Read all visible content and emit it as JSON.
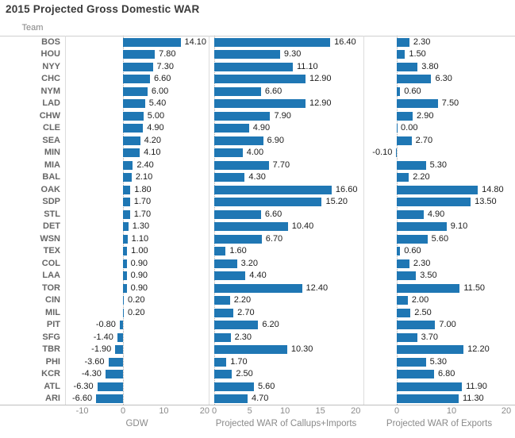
{
  "title": "2015 Projected Gross Domestic WAR",
  "team_header": "Team",
  "colors": {
    "bar": "#1f77b4",
    "title_text": "#3a3a3a",
    "team_text": "#666666",
    "value_text": "#1c1c1c",
    "axis_text": "#8a8a8a",
    "divider": "#dcdcdc",
    "zero_line": "#a9a9a9"
  },
  "chart_data": {
    "type": "bar",
    "orientation": "horizontal",
    "title": "2015 Projected Gross Domestic WAR",
    "row_header": "Team",
    "categories": [
      "BOS",
      "HOU",
      "NYY",
      "CHC",
      "NYM",
      "LAD",
      "CHW",
      "CLE",
      "SEA",
      "MIN",
      "MIA",
      "BAL",
      "OAK",
      "SDP",
      "STL",
      "DET",
      "WSN",
      "TEX",
      "COL",
      "LAA",
      "TOR",
      "CIN",
      "MIL",
      "PIT",
      "SFG",
      "TBR",
      "PHI",
      "KCR",
      "ATL",
      "ARI"
    ],
    "series": [
      {
        "name": "GDW",
        "values": [
          14.1,
          7.8,
          7.3,
          6.6,
          6.0,
          5.4,
          5.0,
          4.9,
          4.2,
          4.1,
          2.4,
          2.1,
          1.8,
          1.7,
          1.7,
          1.3,
          1.1,
          1.0,
          0.9,
          0.9,
          0.9,
          0.2,
          0.2,
          -0.8,
          -1.4,
          -1.9,
          -3.6,
          -4.3,
          -6.3,
          -6.6
        ]
      },
      {
        "name": "Projected WAR of Callups+Imports",
        "values": [
          16.4,
          9.3,
          11.1,
          12.9,
          6.6,
          12.9,
          7.9,
          4.9,
          6.9,
          4.0,
          7.7,
          4.3,
          16.6,
          15.2,
          6.6,
          10.4,
          6.7,
          1.6,
          3.2,
          4.4,
          12.4,
          2.2,
          2.7,
          6.2,
          2.3,
          10.3,
          1.7,
          2.5,
          5.6,
          4.7
        ]
      },
      {
        "name": "Projected WAR of Exports",
        "values": [
          2.3,
          1.5,
          3.8,
          6.3,
          0.6,
          7.5,
          2.9,
          0.0,
          2.7,
          -0.1,
          5.3,
          2.2,
          14.8,
          13.5,
          4.9,
          9.1,
          5.6,
          0.6,
          2.3,
          3.5,
          11.5,
          2.0,
          2.5,
          7.0,
          3.7,
          12.2,
          5.3,
          6.8,
          11.9,
          11.3
        ]
      }
    ],
    "panels": [
      {
        "xlabel": "GDW",
        "xlim": [
          -14.2,
          21.0
        ],
        "ticks": [
          -10,
          0,
          10,
          20
        ]
      },
      {
        "xlabel": "Projected WAR of Callups+Imports",
        "xlim": [
          -0.8,
          21.1
        ],
        "ticks": [
          0,
          5,
          10,
          15,
          20
        ]
      },
      {
        "xlabel": "Projected WAR of Exports",
        "xlim": [
          -6.1,
          21.6
        ],
        "ticks": [
          0,
          10,
          20
        ]
      }
    ],
    "value_format": "0.00",
    "grid": "zero-line-only",
    "legend": "none"
  }
}
